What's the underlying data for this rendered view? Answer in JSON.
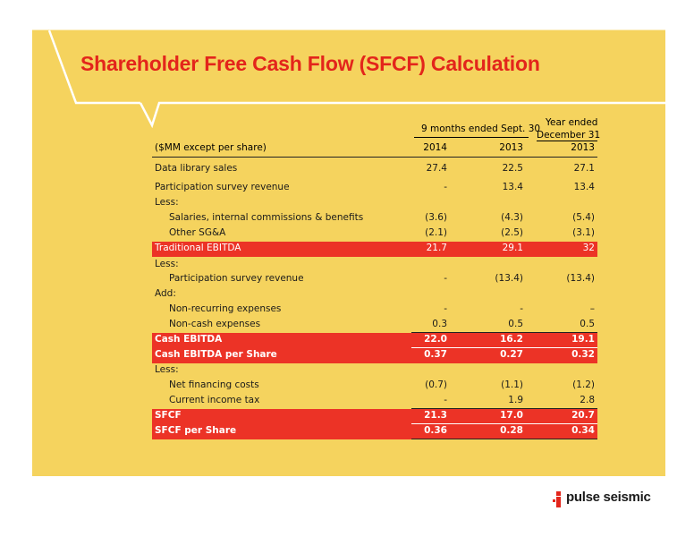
{
  "slide": {
    "title": "Shareholder Free Cash Flow (SFCF) Calculation",
    "colors": {
      "background": "#ffffff",
      "panel": "#f5d35e",
      "title": "#e3251b",
      "highlight": "#ec3326"
    }
  },
  "table": {
    "header_nine_months": "9 months ended Sept. 30",
    "header_year_ended_1": "Year ended",
    "header_year_ended_2": "December 31",
    "unit_label": "($MM except per share)",
    "columns": [
      "2014",
      "2013",
      "2013"
    ],
    "rows": [
      {
        "label": "Data library sales",
        "values": [
          "27.4",
          "22.5",
          "27.1"
        ]
      },
      {
        "label": "Participation survey revenue",
        "values": [
          "-",
          "13.4",
          "13.4"
        ]
      },
      {
        "label": "Less:",
        "values": [
          "",
          "",
          ""
        ]
      },
      {
        "label": "Salaries, internal commissions & benefits",
        "values": [
          "(3.6)",
          "(4.3)",
          "(5.4)"
        ]
      },
      {
        "label": "Other SG&A",
        "values": [
          "(2.1)",
          "(2.5)",
          "(3.1)"
        ]
      },
      {
        "label": "Traditional EBITDA",
        "values": [
          "21.7",
          "29.1",
          "32"
        ]
      },
      {
        "label": "Less:",
        "values": [
          "",
          "",
          ""
        ]
      },
      {
        "label": "Participation survey revenue",
        "values": [
          "-",
          "(13.4)",
          "(13.4)"
        ]
      },
      {
        "label": "Add:",
        "values": [
          "",
          "",
          ""
        ]
      },
      {
        "label": "Non-recurring expenses",
        "values": [
          "-",
          "-",
          "–"
        ]
      },
      {
        "label": "Non-cash expenses",
        "values": [
          "0.3",
          "0.5",
          "0.5"
        ]
      },
      {
        "label": "Cash EBITDA",
        "values": [
          "22.0",
          "16.2",
          "19.1"
        ]
      },
      {
        "label": "Cash EBITDA per Share",
        "values": [
          "0.37",
          "0.27",
          "0.32"
        ]
      },
      {
        "label": "Less:",
        "values": [
          "",
          "",
          ""
        ]
      },
      {
        "label": "Net financing costs",
        "values": [
          "(0.7)",
          "(1.1)",
          "(1.2)"
        ]
      },
      {
        "label": "Current income tax",
        "values": [
          "-",
          "1.9",
          "2.8"
        ]
      },
      {
        "label": "SFCF",
        "values": [
          "21.3",
          "17.0",
          "20.7"
        ]
      },
      {
        "label": "SFCF per Share",
        "values": [
          "0.36",
          "0.28",
          "0.34"
        ]
      }
    ]
  },
  "footer": {
    "logo_text": "pulse seismic",
    "logo_icon": "pulse-seismic-logo-icon"
  }
}
